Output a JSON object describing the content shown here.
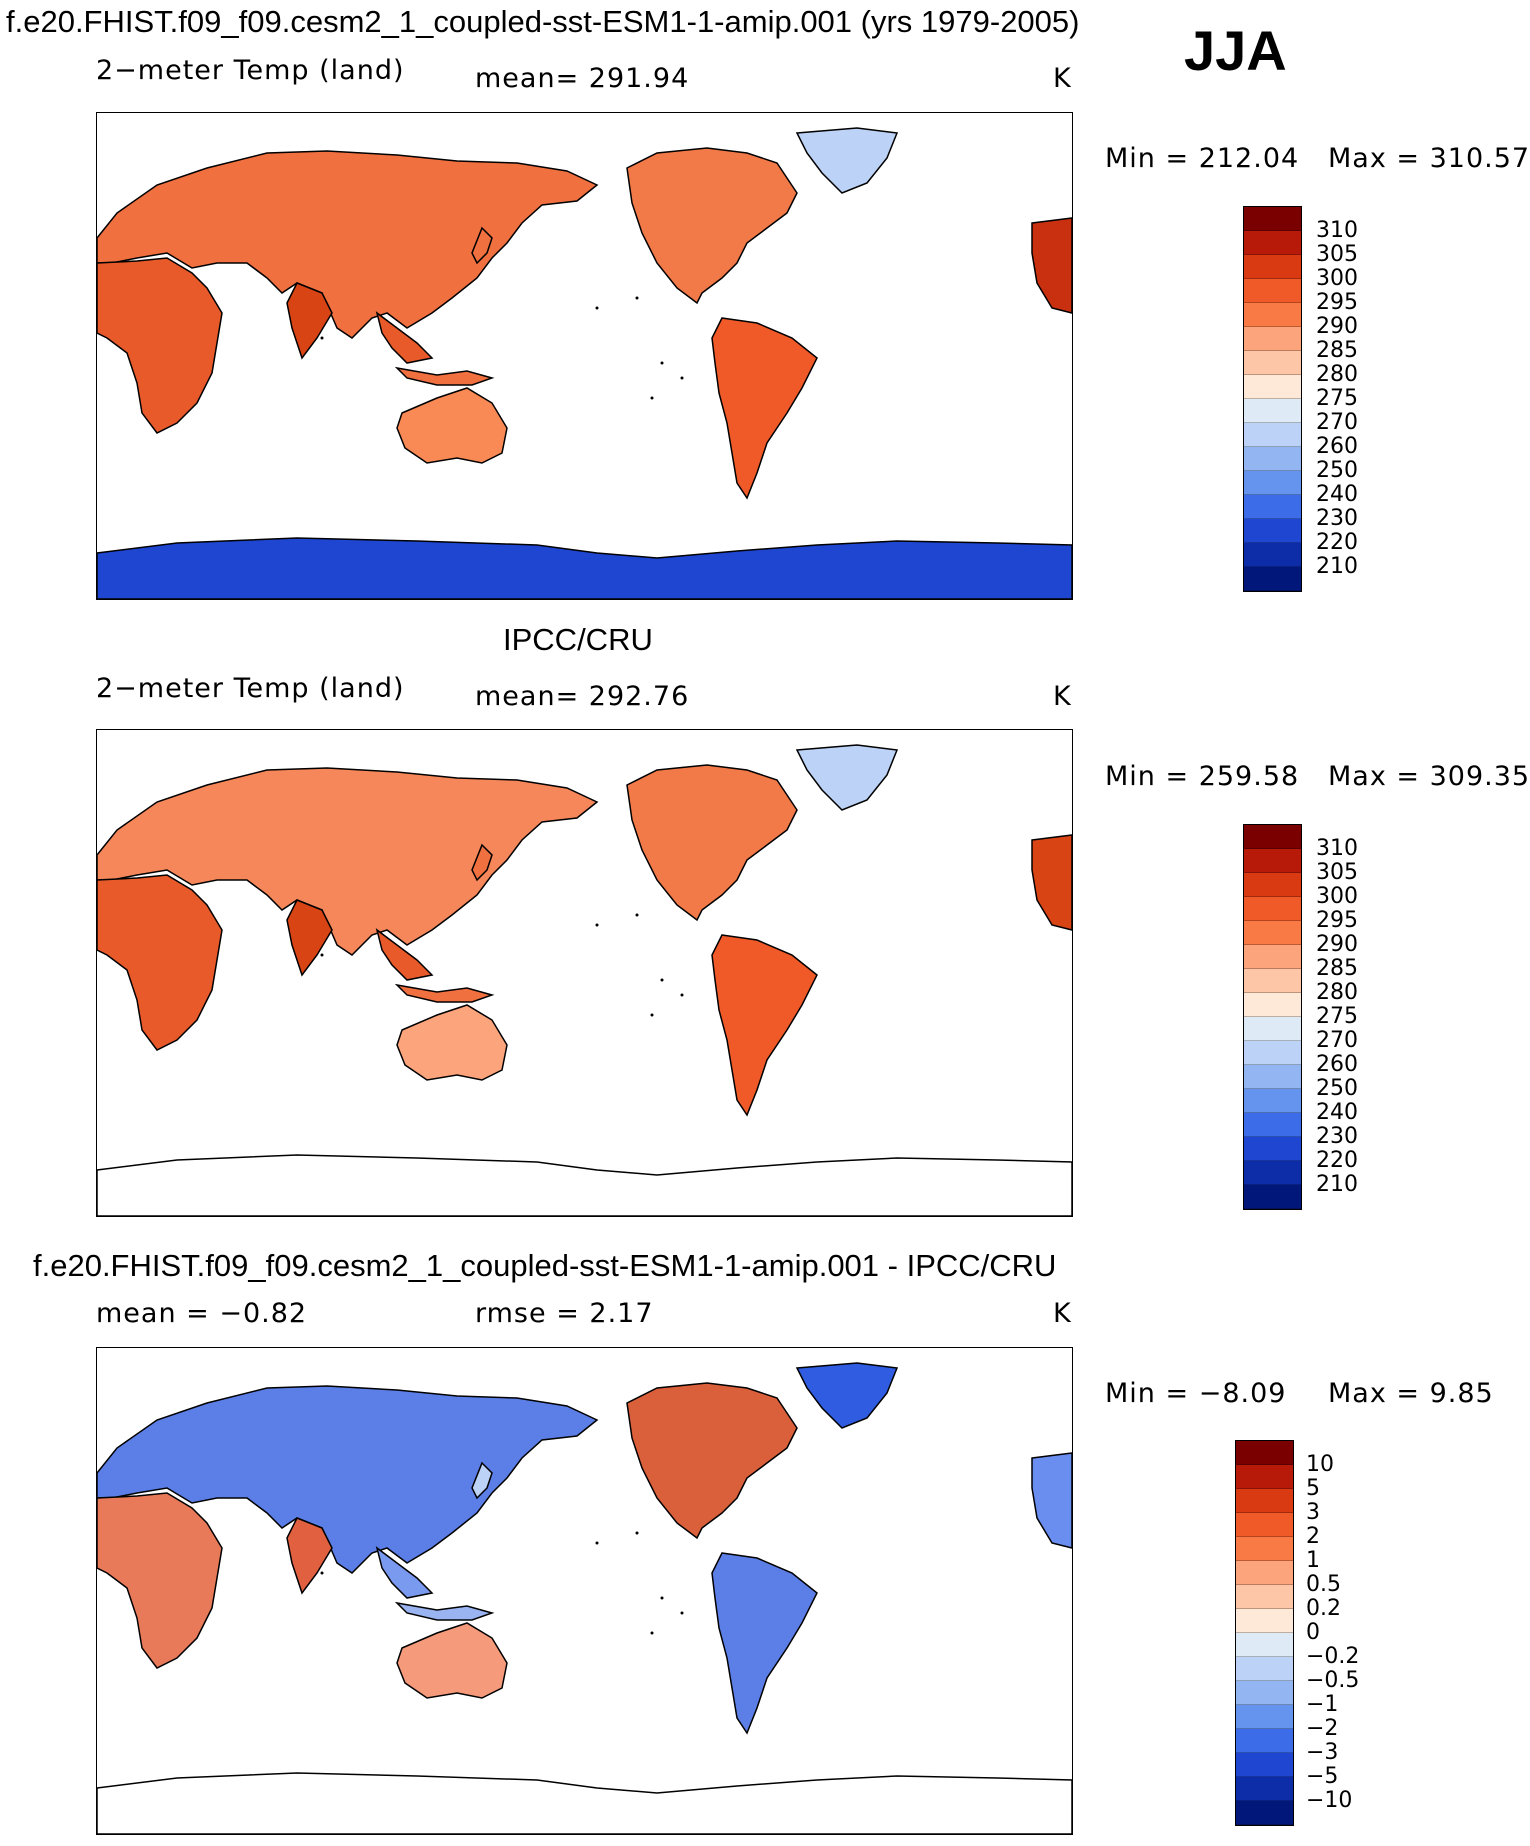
{
  "header": {
    "case_title": "f.e20.FHIST.f09_f09.cesm2_1_coupled-sst-ESM1-1-amip.001 (yrs 1979-2005)",
    "season": "JJA"
  },
  "panels": [
    {
      "id": "model",
      "section_title": "",
      "variable": "2−meter Temp (land)",
      "stat": "mean= 291.94",
      "units": "K",
      "min_label": "Min = 212.04",
      "max_label": "Max = 310.57",
      "colorbar_labels": [
        "310",
        "305",
        "300",
        "295",
        "290",
        "285",
        "280",
        "275",
        "270",
        "260",
        "250",
        "240",
        "230",
        "220",
        "210"
      ],
      "show_antarctic_fill": true
    },
    {
      "id": "obs",
      "section_title": "IPCC/CRU",
      "variable": "2−meter Temp (land)",
      "stat": "mean= 292.76",
      "units": "K",
      "min_label": "Min = 259.58",
      "max_label": "Max = 309.35",
      "colorbar_labels": [
        "310",
        "305",
        "300",
        "295",
        "290",
        "285",
        "280",
        "275",
        "270",
        "260",
        "250",
        "240",
        "230",
        "220",
        "210"
      ],
      "show_antarctic_fill": false
    },
    {
      "id": "diff",
      "section_title": "f.e20.FHIST.f09_f09.cesm2_1_coupled-sst-ESM1-1-amip.001 - IPCC/CRU",
      "variable": "mean =   −0.82",
      "stat": "rmse =    2.17",
      "units": "K",
      "min_label": "Min =  −8.09",
      "max_label": "Max =    9.85",
      "colorbar_labels": [
        "10",
        "5",
        "3",
        "2",
        "1",
        "0.5",
        "0.2",
        "0",
        "−0.2",
        "−0.5",
        "−1",
        "−2",
        "−3",
        "−5",
        "−10"
      ],
      "show_antarctic_fill": false
    }
  ],
  "colors": {
    "temp_scale": [
      "#7a0000",
      "#b81a0a",
      "#d93a12",
      "#f05a28",
      "#fa7a45",
      "#fca47c",
      "#fdc6a6",
      "#fee9d8",
      "#deebf7",
      "#bcd3f7",
      "#93b6f2",
      "#6494ee",
      "#3d6ce8",
      "#1e46d1",
      "#0c2ca8",
      "#02177a"
    ],
    "diff_scale": [
      "#7a0000",
      "#b81a0a",
      "#d93a12",
      "#f05a28",
      "#fa7a45",
      "#fca47c",
      "#fdc6a6",
      "#fee9d8",
      "#deebf7",
      "#bcd3f7",
      "#93b6f2",
      "#6494ee",
      "#3d6ce8",
      "#1e46d1",
      "#0c2ca8",
      "#02177a"
    ]
  }
}
